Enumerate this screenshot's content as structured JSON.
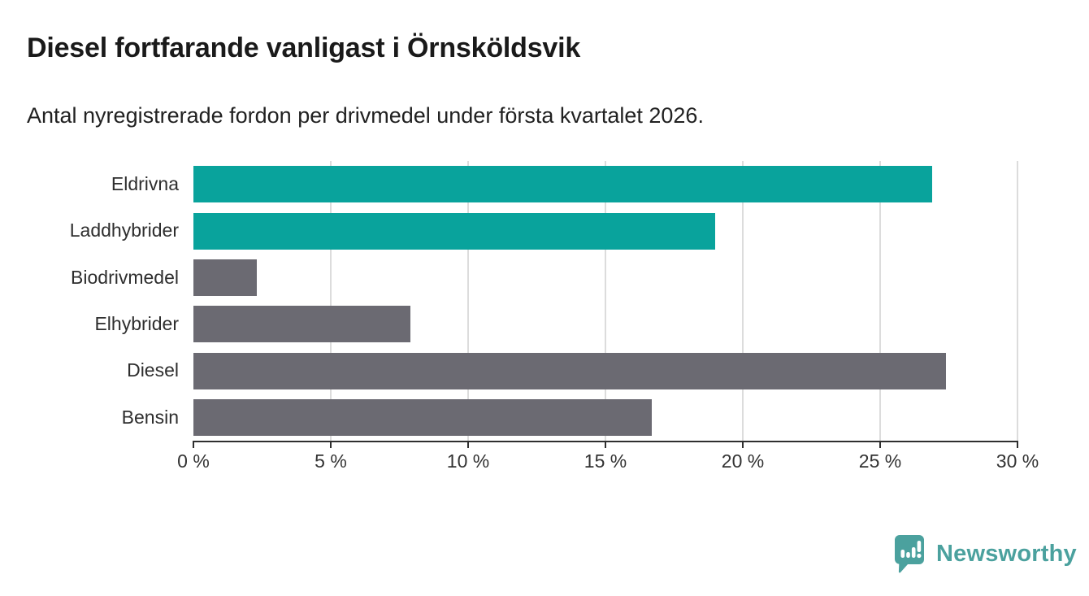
{
  "header": {
    "title": "Diesel fortfarande vanligast i Örnsköldsvik",
    "subtitle": "Antal nyregistrerade fordon per drivmedel under första kvartalet 2026."
  },
  "chart_data": {
    "type": "bar",
    "orientation": "horizontal",
    "title": "Diesel fortfarande vanligast i Örnsköldsvik",
    "subtitle": "Antal nyregistrerade fordon per drivmedel under första kvartalet 2026.",
    "categories": [
      "Eldrivna",
      "Laddhybrider",
      "Biodrivmedel",
      "Elhybrider",
      "Diesel",
      "Bensin"
    ],
    "values": [
      26.9,
      19.0,
      2.3,
      7.9,
      27.4,
      16.7
    ],
    "unit": "%",
    "bar_colors": [
      "#09a39c",
      "#09a39c",
      "#6b6a72",
      "#6b6a72",
      "#6b6a72",
      "#6b6a72"
    ],
    "xlim": [
      0,
      30
    ],
    "x_ticks": [
      0,
      5,
      10,
      15,
      20,
      25,
      30
    ],
    "x_tick_labels": [
      "0 %",
      "5 %",
      "10 %",
      "15 %",
      "20 %",
      "25 %",
      "30 %"
    ],
    "grid": "vertical gridlines at 5 % steps",
    "legend": "none"
  },
  "branding": {
    "logo_text": "Newsworthy",
    "logo_color": "#4ba19e",
    "logo_icon": "bar-chart-speech-bubble-icon"
  },
  "colors": {
    "accent_teal": "#09a39c",
    "neutral_gray": "#6b6a72",
    "axis": "#2f2f2f",
    "gridline": "#dcdcdc",
    "background": "#ffffff"
  }
}
